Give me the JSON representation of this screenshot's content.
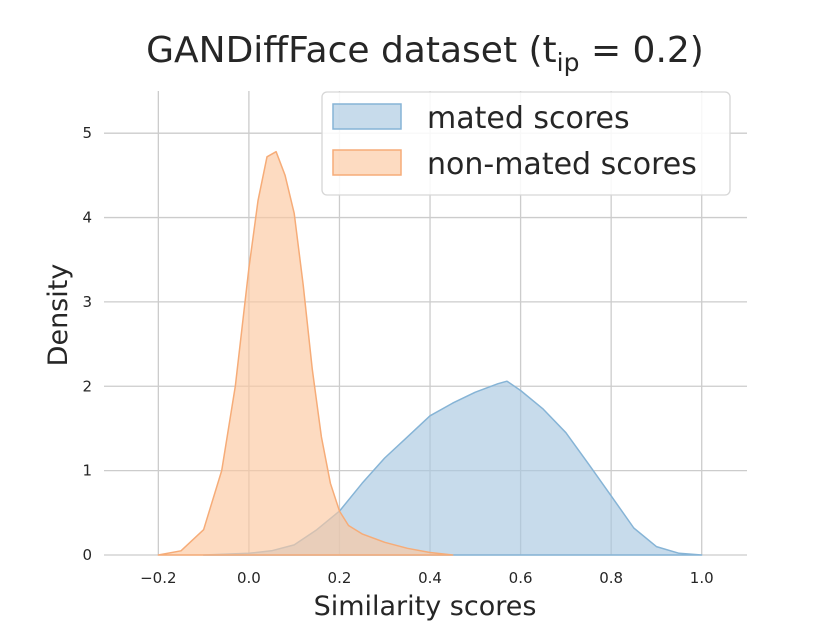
{
  "chart_data": {
    "type": "area",
    "title": "GANDiffFace dataset (t",
    "title_subscript": "ip",
    "title_suffix": " = 0.2)",
    "xlabel": "Similarity scores",
    "ylabel": "Density",
    "xlim": [
      -0.32,
      1.1
    ],
    "ylim": [
      0,
      5.5
    ],
    "xticks": [
      -0.2,
      0.0,
      0.2,
      0.4,
      0.6,
      0.8,
      1.0
    ],
    "xtick_labels": [
      "−0.2",
      "0.0",
      "0.2",
      "0.4",
      "0.6",
      "0.8",
      "1.0"
    ],
    "yticks": [
      0,
      1,
      2,
      3,
      4,
      5
    ],
    "ytick_labels": [
      "0",
      "1",
      "2",
      "3",
      "4",
      "5"
    ],
    "grid": true,
    "legend_position": "top-right",
    "series": [
      {
        "name": "mated scores",
        "fill": "#a9c8e0",
        "stroke": "#86b4d6",
        "x": [
          -0.1,
          0.0,
          0.05,
          0.1,
          0.15,
          0.2,
          0.25,
          0.3,
          0.35,
          0.4,
          0.45,
          0.5,
          0.55,
          0.57,
          0.6,
          0.65,
          0.7,
          0.75,
          0.8,
          0.85,
          0.9,
          0.95,
          1.0
        ],
        "y": [
          0.0,
          0.02,
          0.05,
          0.12,
          0.3,
          0.52,
          0.85,
          1.15,
          1.4,
          1.65,
          1.8,
          1.93,
          2.03,
          2.06,
          1.95,
          1.73,
          1.45,
          1.08,
          0.7,
          0.32,
          0.1,
          0.02,
          0.0
        ]
      },
      {
        "name": "non-mated scores",
        "fill": "#fcc8a0",
        "stroke": "#f6ac78",
        "x": [
          -0.2,
          -0.15,
          -0.1,
          -0.06,
          -0.03,
          0.0,
          0.02,
          0.04,
          0.06,
          0.08,
          0.1,
          0.12,
          0.14,
          0.16,
          0.18,
          0.2,
          0.22,
          0.25,
          0.3,
          0.35,
          0.4,
          0.45
        ],
        "y": [
          0.0,
          0.05,
          0.3,
          1.0,
          2.0,
          3.4,
          4.2,
          4.72,
          4.78,
          4.5,
          4.05,
          3.2,
          2.2,
          1.4,
          0.85,
          0.52,
          0.35,
          0.25,
          0.15,
          0.08,
          0.03,
          0.0
        ]
      }
    ]
  }
}
